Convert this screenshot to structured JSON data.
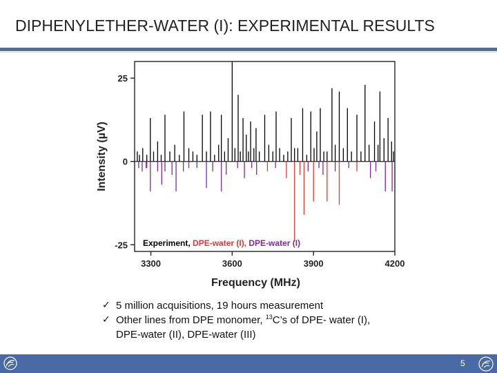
{
  "slide": {
    "title": "DIPHENYLETHER-WATER (I): EXPERIMENTAL RESULTS",
    "page_number": "5"
  },
  "bullets": [
    "5 million acquisitions, 19 hours measurement",
    "Other lines from DPE monomer, "
  ],
  "bullet2_sup": "13",
  "bullet2_rest": "C’s of DPE- water (I),",
  "bullet2_cont": "DPE-water (II), DPE-water (III)",
  "check_mark": "✓",
  "colors": {
    "accent": "#4f6e9c",
    "footer": "#4a6aa5",
    "experiment": "#000000",
    "dpe_water_red": "#d93a3a",
    "dpe_water_purple": "#7a2a9a"
  },
  "chart_data": {
    "type": "stick-spectrum",
    "xlabel": "Frequency (MHz)",
    "ylabel": "Intensity (µV)",
    "xlim": [
      3240,
      4200
    ],
    "ylim": [
      -27,
      30
    ],
    "xticks": [
      3300,
      3600,
      3900,
      4200
    ],
    "yticks": [
      25,
      0,
      -25
    ],
    "ytick_labels": [
      "25",
      "0",
      "-25"
    ],
    "legend": {
      "parts": [
        "Experiment, ",
        "DPE-water (I), ",
        "DPE-water (I)"
      ],
      "colors": [
        "#000000",
        "#d93a3a",
        "#7a2a9a"
      ],
      "placement": "bottom-left"
    },
    "series": [
      {
        "name": "Experiment",
        "color": "#000000",
        "peaks": [
          [
            3250,
            3
          ],
          [
            3258,
            2
          ],
          [
            3270,
            4
          ],
          [
            3285,
            2
          ],
          [
            3298,
            13
          ],
          [
            3310,
            3
          ],
          [
            3325,
            6
          ],
          [
            3338,
            2
          ],
          [
            3352,
            14
          ],
          [
            3370,
            3
          ],
          [
            3388,
            5
          ],
          [
            3405,
            2
          ],
          [
            3422,
            15
          ],
          [
            3440,
            4
          ],
          [
            3455,
            3
          ],
          [
            3470,
            2
          ],
          [
            3490,
            14
          ],
          [
            3505,
            3
          ],
          [
            3520,
            15
          ],
          [
            3535,
            2
          ],
          [
            3550,
            5
          ],
          [
            3560,
            14
          ],
          [
            3572,
            3
          ],
          [
            3585,
            7
          ],
          [
            3600,
            30
          ],
          [
            3610,
            4
          ],
          [
            3622,
            20
          ],
          [
            3630,
            3
          ],
          [
            3640,
            13
          ],
          [
            3652,
            8
          ],
          [
            3660,
            3
          ],
          [
            3668,
            12
          ],
          [
            3680,
            4
          ],
          [
            3688,
            10
          ],
          [
            3700,
            3
          ],
          [
            3720,
            14
          ],
          [
            3735,
            5
          ],
          [
            3750,
            3
          ],
          [
            3762,
            15
          ],
          [
            3775,
            4
          ],
          [
            3790,
            2
          ],
          [
            3805,
            3
          ],
          [
            3818,
            13
          ],
          [
            3830,
            4
          ],
          [
            3842,
            4
          ],
          [
            3860,
            16
          ],
          [
            3875,
            2
          ],
          [
            3890,
            15
          ],
          [
            3902,
            4
          ],
          [
            3912,
            9
          ],
          [
            3925,
            16
          ],
          [
            3938,
            3
          ],
          [
            3950,
            3
          ],
          [
            3968,
            22
          ],
          [
            3980,
            5
          ],
          [
            3995,
            21
          ],
          [
            4010,
            4
          ],
          [
            4025,
            16
          ],
          [
            4040,
            3
          ],
          [
            4060,
            14
          ],
          [
            4075,
            3
          ],
          [
            4090,
            23
          ],
          [
            4105,
            5
          ],
          [
            4125,
            12
          ],
          [
            4138,
            5
          ],
          [
            4145,
            21
          ],
          [
            4160,
            7
          ],
          [
            4175,
            13
          ],
          [
            4188,
            6
          ],
          [
            4195,
            3
          ]
        ]
      },
      {
        "name": "DPE-water (I) red",
        "color": "#d93a3a",
        "peaks": [
          [
            3830,
            -24
          ],
          [
            3865,
            -16
          ],
          [
            3900,
            -12
          ],
          [
            3950,
            -12
          ],
          [
            3995,
            -13
          ],
          [
            3800,
            -5
          ],
          [
            3850,
            -4
          ],
          [
            4060,
            -3
          ],
          [
            3282,
            -2
          ],
          [
            3730,
            -3
          ]
        ]
      },
      {
        "name": "DPE-water (I) purple",
        "color": "#7a2a9a",
        "peaks": [
          [
            3255,
            -2
          ],
          [
            3268,
            -3
          ],
          [
            3285,
            -2
          ],
          [
            3298,
            -9
          ],
          [
            3325,
            -3
          ],
          [
            3340,
            -7
          ],
          [
            3352,
            -3
          ],
          [
            3378,
            -4
          ],
          [
            3393,
            -9
          ],
          [
            3420,
            -3
          ],
          [
            3440,
            -2
          ],
          [
            3470,
            -2
          ],
          [
            3505,
            -8
          ],
          [
            3528,
            -3
          ],
          [
            3560,
            -9
          ],
          [
            3578,
            -4
          ],
          [
            3620,
            -2
          ],
          [
            3645,
            -5
          ],
          [
            3672,
            -2
          ],
          [
            3690,
            -4
          ],
          [
            3760,
            -2
          ],
          [
            3880,
            -3
          ],
          [
            3920,
            -2
          ],
          [
            3935,
            -4
          ],
          [
            3980,
            -3
          ],
          [
            4030,
            -2
          ],
          [
            4110,
            -5
          ],
          [
            4130,
            -3
          ],
          [
            4165,
            -9
          ],
          [
            4190,
            -9
          ]
        ]
      }
    ]
  }
}
